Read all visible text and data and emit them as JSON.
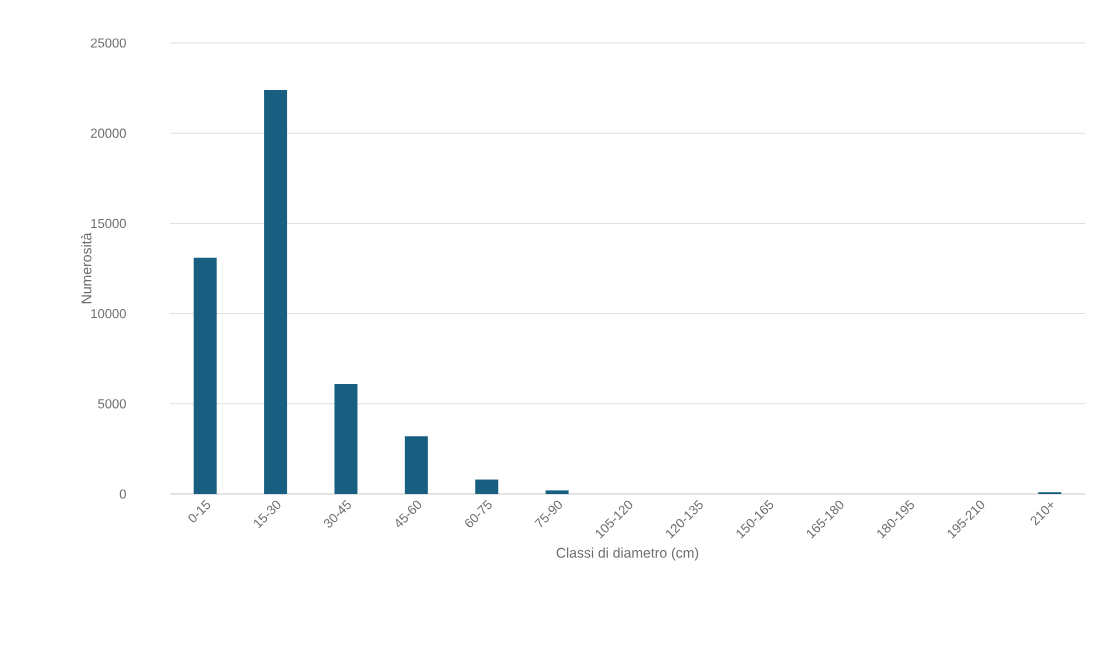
{
  "chart_data": {
    "type": "bar",
    "xlabel": "Classi di diametro (cm)",
    "ylabel": "Numerosità",
    "categories": [
      "0-15",
      "15-30",
      "30-45",
      "45-60",
      "60-75",
      "75-90",
      "105-120",
      "120-135",
      "150-165",
      "165-180",
      "180-195",
      "195-210",
      "210+"
    ],
    "values": [
      13100,
      22400,
      6100,
      3200,
      800,
      200,
      0,
      0,
      0,
      0,
      0,
      0,
      100
    ],
    "color": "#175e80",
    "ylim": [
      0,
      25000
    ],
    "yticks": [
      0,
      5000,
      10000,
      15000,
      20000,
      25000
    ],
    "grid": "y"
  }
}
